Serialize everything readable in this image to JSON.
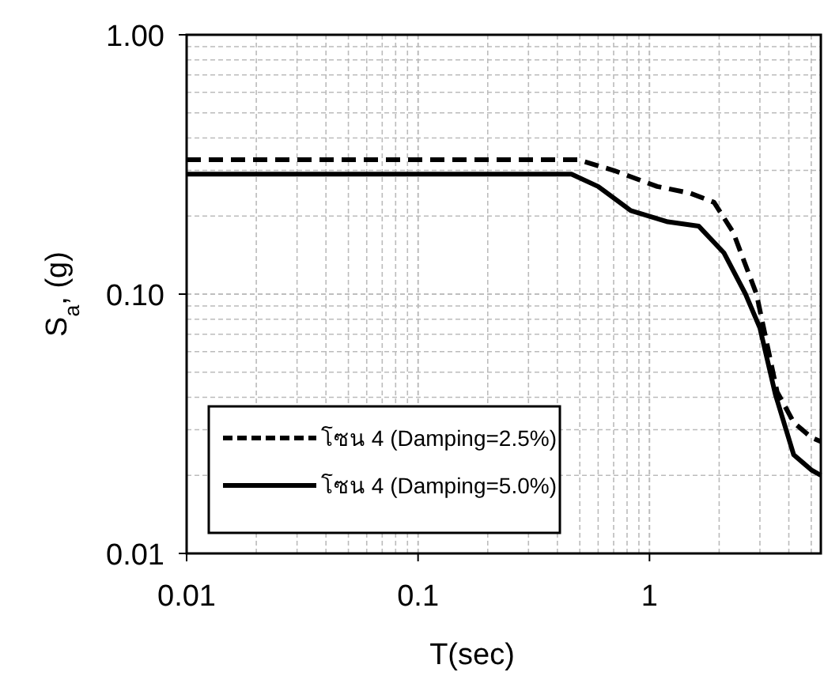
{
  "chart_data": {
    "type": "line",
    "xlabel": "T(sec)",
    "ylabel": "S$_{a}$, (g)",
    "log": "xy",
    "grid": true,
    "legend": "bottom left",
    "xlim": [
      0.01,
      5.5
    ],
    "xticks": [
      0.01,
      0.1,
      1
    ],
    "ylim": [
      0.01,
      1
    ],
    "yticks": [
      0.01,
      {
        "value": 0.1,
        "label": "0.10"
      },
      {
        "value": 1,
        "label": "1.00"
      }
    ],
    "series": [
      {
        "name": "โซน 4 (Damping=2.5%)",
        "color": "#000000",
        "line_style": "dashed",
        "x": [
          0.01,
          0.49,
          0.7,
          1.08,
          1.5,
          1.9,
          2.3,
          2.9,
          3.56,
          4.2,
          5.0,
          5.5
        ],
        "values": [
          0.33,
          0.33,
          0.3,
          0.26,
          0.245,
          0.226,
          0.173,
          0.1,
          0.042,
          0.032,
          0.028,
          0.027
        ]
      },
      {
        "name": "โซน 4 (Damping=5.0%)",
        "color": "#000000",
        "line_style": "solid",
        "x": [
          0.01,
          0.46,
          0.6,
          0.83,
          1.2,
          1.63,
          2.1,
          2.6,
          3.0,
          3.5,
          4.2,
          5.0,
          5.5
        ],
        "values": [
          0.29,
          0.29,
          0.26,
          0.21,
          0.19,
          0.183,
          0.144,
          0.1,
          0.074,
          0.041,
          0.024,
          0.021,
          0.02
        ]
      }
    ]
  }
}
